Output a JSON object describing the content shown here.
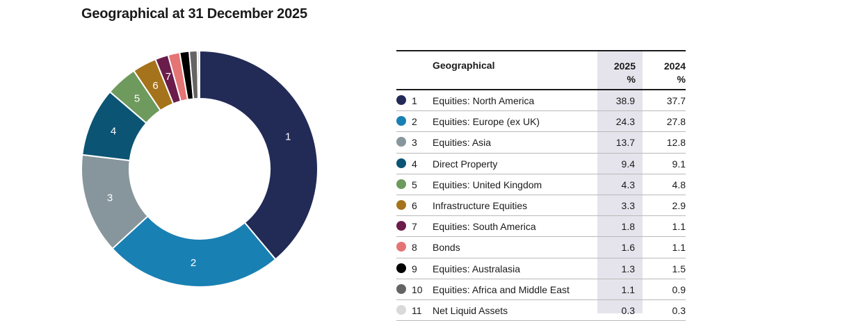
{
  "title": "Geographical at 31 December 2025",
  "table": {
    "header_label": "Geographical",
    "col_2025_year": "2025",
    "col_2025_unit": "%",
    "col_2024_year": "2024",
    "col_2024_unit": "%"
  },
  "chart_data": {
    "type": "pie",
    "title": "Geographical at 31 December 2025",
    "donut": true,
    "series": [
      {
        "name": "2025",
        "values": [
          38.9,
          24.3,
          13.7,
          9.4,
          4.3,
          3.3,
          1.8,
          1.6,
          1.3,
          1.1,
          0.3
        ]
      },
      {
        "name": "2024",
        "values": [
          37.7,
          27.8,
          12.8,
          9.1,
          4.8,
          2.9,
          1.1,
          1.1,
          1.5,
          0.9,
          0.3
        ]
      }
    ],
    "categories": [
      {
        "num": "1",
        "label": "Equities: North America",
        "v2025": "38.9",
        "v2024": "37.7",
        "color": "#222b56",
        "slice_text": "1"
      },
      {
        "num": "2",
        "label": "Equities: Europe (ex UK)",
        "v2025": "24.3",
        "v2024": "27.8",
        "color": "#1980b3",
        "slice_text": "2"
      },
      {
        "num": "3",
        "label": "Equities: Asia",
        "v2025": "13.7",
        "v2024": "12.8",
        "color": "#87969c",
        "slice_text": "3"
      },
      {
        "num": "4",
        "label": "Direct Property",
        "v2025": "9.4",
        "v2024": "9.1",
        "color": "#0c5473",
        "slice_text": "4"
      },
      {
        "num": "5",
        "label": "Equities: United Kingdom",
        "v2025": "4.3",
        "v2024": "4.8",
        "color": "#6e9a5e",
        "slice_text": "5"
      },
      {
        "num": "6",
        "label": "Infrastructure Equities",
        "v2025": "3.3",
        "v2024": "2.9",
        "color": "#a5731b",
        "slice_text": "6"
      },
      {
        "num": "7",
        "label": "Equities: South America",
        "v2025": "1.8",
        "v2024": "1.1",
        "color": "#6a1d4a",
        "slice_text": "7"
      },
      {
        "num": "8",
        "label": "Bonds",
        "v2025": "1.6",
        "v2024": "1.1",
        "color": "#e57474",
        "slice_text": ""
      },
      {
        "num": "9",
        "label": "Equities: Australasia",
        "v2025": "1.3",
        "v2024": "1.5",
        "color": "#000000",
        "slice_text": ""
      },
      {
        "num": "10",
        "label": "Equities: Africa and Middle East",
        "v2025": "1.1",
        "v2024": "0.9",
        "color": "#646464",
        "slice_text": ""
      },
      {
        "num": "11",
        "label": "Net Liquid Assets",
        "v2025": "0.3",
        "v2024": "0.3",
        "color": "#d9d9d9",
        "slice_text": ""
      }
    ]
  }
}
